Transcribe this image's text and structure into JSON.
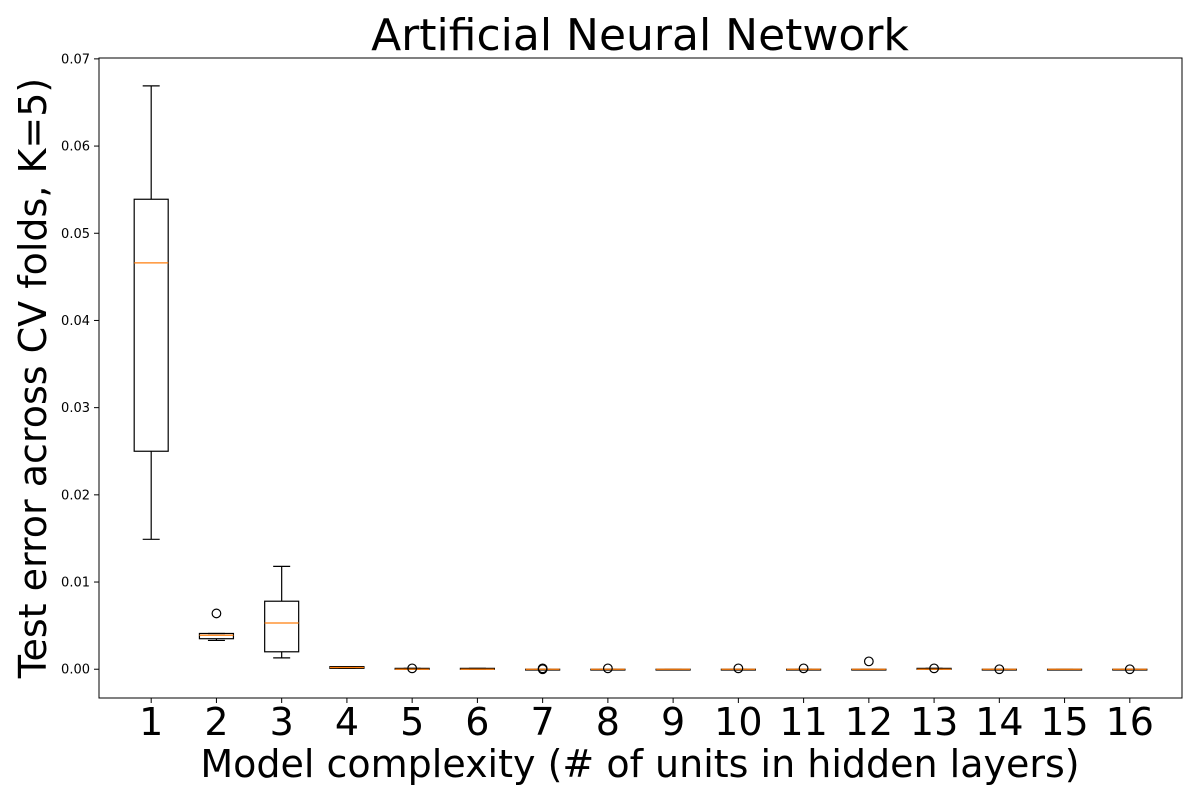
{
  "chart_data": {
    "type": "boxplot",
    "title": "Artificial Neural Network",
    "xlabel": "Model complexity (# of units in hidden layers)",
    "ylabel": "Test error across CV folds, K=5)",
    "ylim": [
      -0.0033,
      0.0701
    ],
    "yticks": [
      "0.00",
      "0.01",
      "0.02",
      "0.03",
      "0.04",
      "0.05",
      "0.06",
      "0.07"
    ],
    "ytick_values": [
      0.0,
      0.01,
      0.02,
      0.03,
      0.04,
      0.05,
      0.06,
      0.07
    ],
    "categories": [
      "1",
      "2",
      "3",
      "4",
      "5",
      "6",
      "7",
      "8",
      "9",
      "10",
      "11",
      "12",
      "13",
      "14",
      "15",
      "16"
    ],
    "colors": {
      "box": "#000000",
      "median": "#ff7f0e",
      "flier": "#000000"
    },
    "series": [
      {
        "category": "1",
        "whisker_low": 0.0149,
        "q1": 0.025,
        "median": 0.0466,
        "q3": 0.0539,
        "whisker_high": 0.0669,
        "fliers": []
      },
      {
        "category": "2",
        "whisker_low": 0.0033,
        "q1": 0.0035,
        "median": 0.0039,
        "q3": 0.0041,
        "whisker_high": 0.0041,
        "fliers": [
          0.0064
        ]
      },
      {
        "category": "3",
        "whisker_low": 0.0013,
        "q1": 0.002,
        "median": 0.0053,
        "q3": 0.0078,
        "whisker_high": 0.0118,
        "fliers": []
      },
      {
        "category": "4",
        "whisker_low": 0.0001,
        "q1": 0.0001,
        "median": 0.0002,
        "q3": 0.0003,
        "whisker_high": 0.0003,
        "fliers": []
      },
      {
        "category": "5",
        "whisker_low": 0.0,
        "q1": 0.0,
        "median": 0.0,
        "q3": 0.0001,
        "whisker_high": 0.0001,
        "fliers": [
          0.0001
        ]
      },
      {
        "category": "6",
        "whisker_low": 0.0,
        "q1": 0.0,
        "median": 0.0,
        "q3": 0.0001,
        "whisker_high": 0.0001,
        "fliers": []
      },
      {
        "category": "7",
        "whisker_low": 0.0,
        "q1": 0.0,
        "median": 0.0,
        "q3": 0.0,
        "whisker_high": 0.0,
        "fliers": [
          0.0,
          0.0001
        ]
      },
      {
        "category": "8",
        "whisker_low": 0.0,
        "q1": 0.0,
        "median": 0.0,
        "q3": 0.0,
        "whisker_high": 0.0,
        "fliers": [
          0.0001
        ]
      },
      {
        "category": "9",
        "whisker_low": 0.0,
        "q1": 0.0,
        "median": 0.0,
        "q3": 0.0,
        "whisker_high": 0.0,
        "fliers": []
      },
      {
        "category": "10",
        "whisker_low": 0.0,
        "q1": 0.0,
        "median": 0.0,
        "q3": 0.0,
        "whisker_high": 0.0,
        "fliers": [
          0.0001
        ]
      },
      {
        "category": "11",
        "whisker_low": 0.0,
        "q1": 0.0,
        "median": 0.0,
        "q3": 0.0,
        "whisker_high": 0.0,
        "fliers": [
          0.0001
        ]
      },
      {
        "category": "12",
        "whisker_low": 0.0,
        "q1": 0.0,
        "median": 0.0,
        "q3": 0.0,
        "whisker_high": 0.0,
        "fliers": [
          0.0009
        ]
      },
      {
        "category": "13",
        "whisker_low": 0.0,
        "q1": 0.0,
        "median": 0.0,
        "q3": 0.0001,
        "whisker_high": 0.0001,
        "fliers": [
          0.0001
        ]
      },
      {
        "category": "14",
        "whisker_low": 0.0,
        "q1": 0.0,
        "median": 0.0,
        "q3": 0.0,
        "whisker_high": 0.0,
        "fliers": [
          0.0
        ]
      },
      {
        "category": "15",
        "whisker_low": 0.0,
        "q1": 0.0,
        "median": 0.0,
        "q3": 0.0,
        "whisker_high": 0.0,
        "fliers": []
      },
      {
        "category": "16",
        "whisker_low": 0.0,
        "q1": 0.0,
        "median": 0.0,
        "q3": 0.0,
        "whisker_high": 0.0,
        "fliers": [
          0.0
        ]
      }
    ],
    "grid": false,
    "legend": "none"
  }
}
